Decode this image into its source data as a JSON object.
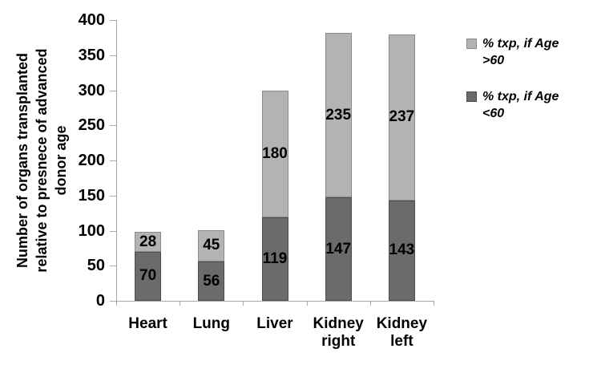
{
  "chart_data": {
    "type": "bar",
    "stacked": true,
    "title": "",
    "xlabel": "",
    "ylabel": "Number of organs transplanted\nrelative to presnece of advanced\ndonor age",
    "categories": [
      "Heart",
      "Lung",
      "Liver",
      "Kidney\nright",
      "Kidney\nleft"
    ],
    "series": [
      {
        "name": "% txp, if Age <60",
        "color": "#6b6b6b",
        "border_color": "#4d4d4d",
        "values": [
          70,
          56,
          119,
          147,
          143
        ]
      },
      {
        "name": "% txp, if Age >60",
        "color": "#b3b3b3",
        "border_color": "#8a8a8a",
        "values": [
          28,
          45,
          180,
          235,
          237
        ]
      }
    ],
    "data_labels_shown": true,
    "ylim": [
      0,
      400
    ],
    "yticks": [
      0,
      50,
      100,
      150,
      200,
      250,
      300,
      350,
      400
    ],
    "grid": false,
    "axis_color": "#a8a8a8",
    "legend": {
      "position": "right",
      "entries": [
        {
          "label": "% txp, if Age\n>60",
          "color": "#b3b3b3",
          "border_color": "#8a8a8a"
        },
        {
          "label": "% txp, if Age\n<60",
          "color": "#6b6b6b",
          "border_color": "#4d4d4d"
        }
      ]
    }
  }
}
